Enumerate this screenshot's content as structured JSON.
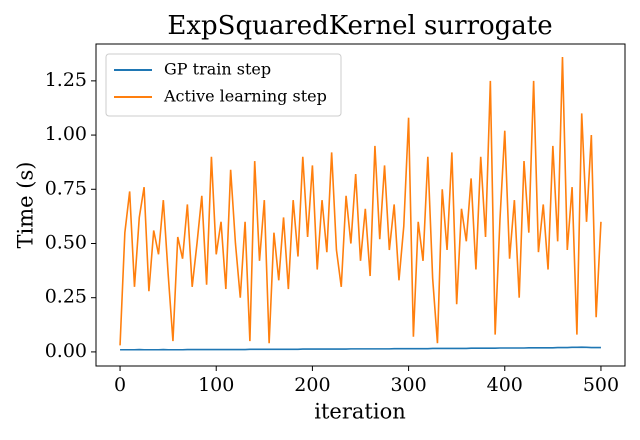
{
  "chart_data": {
    "type": "line",
    "title": "ExpSquaredKernel surrogate",
    "xlabel": "iteration",
    "ylabel": "Time (s)",
    "x": [
      0,
      5,
      10,
      15,
      20,
      25,
      30,
      35,
      40,
      45,
      50,
      55,
      60,
      65,
      70,
      75,
      80,
      85,
      90,
      95,
      100,
      105,
      110,
      115,
      120,
      125,
      130,
      135,
      140,
      145,
      150,
      155,
      160,
      165,
      170,
      175,
      180,
      185,
      190,
      195,
      200,
      205,
      210,
      215,
      220,
      225,
      230,
      235,
      240,
      245,
      250,
      255,
      260,
      265,
      270,
      275,
      280,
      285,
      290,
      295,
      300,
      305,
      310,
      315,
      320,
      325,
      330,
      335,
      340,
      345,
      350,
      355,
      360,
      365,
      370,
      375,
      380,
      385,
      390,
      395,
      400,
      405,
      410,
      415,
      420,
      425,
      430,
      435,
      440,
      445,
      450,
      455,
      460,
      465,
      470,
      475,
      480,
      485,
      490,
      495,
      500
    ],
    "series": [
      {
        "name": "GP train step",
        "color": "#1f77b4",
        "values": [
          0.01,
          0.01,
          0.01,
          0.01,
          0.011,
          0.01,
          0.01,
          0.01,
          0.01,
          0.011,
          0.01,
          0.01,
          0.01,
          0.01,
          0.011,
          0.011,
          0.011,
          0.011,
          0.011,
          0.011,
          0.011,
          0.011,
          0.011,
          0.011,
          0.011,
          0.011,
          0.011,
          0.012,
          0.012,
          0.012,
          0.012,
          0.012,
          0.012,
          0.012,
          0.012,
          0.012,
          0.012,
          0.012,
          0.013,
          0.013,
          0.013,
          0.013,
          0.013,
          0.013,
          0.013,
          0.013,
          0.013,
          0.013,
          0.014,
          0.014,
          0.014,
          0.014,
          0.014,
          0.014,
          0.014,
          0.014,
          0.014,
          0.015,
          0.015,
          0.015,
          0.015,
          0.015,
          0.015,
          0.015,
          0.015,
          0.016,
          0.016,
          0.016,
          0.016,
          0.016,
          0.016,
          0.016,
          0.016,
          0.017,
          0.017,
          0.017,
          0.017,
          0.017,
          0.017,
          0.018,
          0.018,
          0.018,
          0.018,
          0.018,
          0.018,
          0.019,
          0.019,
          0.019,
          0.019,
          0.019,
          0.019,
          0.02,
          0.02,
          0.02,
          0.021,
          0.021,
          0.022,
          0.021,
          0.02,
          0.02,
          0.02
        ]
      },
      {
        "name": "Active learning step",
        "color": "#ff7f0e",
        "values": [
          0.03,
          0.55,
          0.74,
          0.3,
          0.62,
          0.76,
          0.28,
          0.56,
          0.45,
          0.7,
          0.36,
          0.05,
          0.53,
          0.43,
          0.68,
          0.3,
          0.5,
          0.72,
          0.31,
          0.9,
          0.45,
          0.6,
          0.29,
          0.84,
          0.5,
          0.25,
          0.6,
          0.05,
          0.88,
          0.42,
          0.7,
          0.04,
          0.55,
          0.33,
          0.62,
          0.29,
          0.7,
          0.44,
          0.9,
          0.53,
          0.86,
          0.38,
          0.7,
          0.46,
          0.92,
          0.47,
          0.3,
          0.72,
          0.5,
          0.82,
          0.42,
          0.66,
          0.35,
          0.95,
          0.52,
          0.86,
          0.47,
          0.68,
          0.33,
          0.58,
          1.08,
          0.07,
          0.6,
          0.42,
          0.9,
          0.34,
          0.04,
          0.75,
          0.47,
          0.92,
          0.22,
          0.66,
          0.51,
          0.8,
          0.38,
          0.9,
          0.53,
          1.25,
          0.08,
          0.61,
          1.02,
          0.43,
          0.7,
          0.25,
          0.88,
          0.55,
          1.25,
          0.46,
          0.68,
          0.38,
          0.95,
          0.51,
          1.36,
          0.47,
          0.76,
          0.08,
          1.1,
          0.6,
          1.0,
          0.16,
          0.6
        ]
      }
    ],
    "xlim": [
      -25,
      525
    ],
    "ylim": [
      -0.065,
      1.42
    ],
    "xticks": [
      0,
      100,
      200,
      300,
      400,
      500
    ],
    "yticks": [
      {
        "value": 0,
        "label": "0.00"
      },
      {
        "value": 0.25,
        "label": "0.25"
      },
      {
        "value": 0.5,
        "label": "0.50"
      },
      {
        "value": 0.75,
        "label": "0.75"
      },
      {
        "value": 1,
        "label": "1.00"
      },
      {
        "value": 1.25,
        "label": "1.25"
      }
    ],
    "legend": "upper left"
  }
}
